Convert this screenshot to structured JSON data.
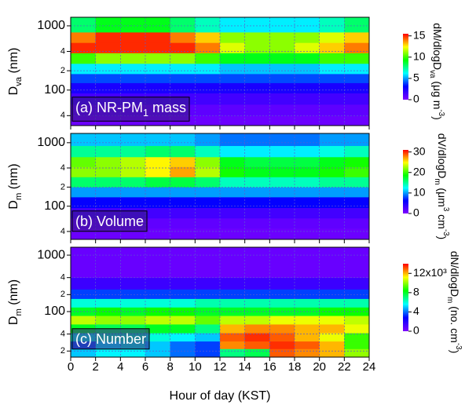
{
  "chart_data": [
    {
      "type": "heatmap",
      "annotation": [
        {
          "text": "(a) NR-PM"
        },
        {
          "text": "1",
          "sub": true
        },
        {
          "text": " mass"
        }
      ],
      "ylabel": [
        {
          "text": "D"
        },
        {
          "text": "va",
          "sub": true
        },
        {
          "text": " (nm)"
        }
      ],
      "colorbar_label": [
        {
          "text": "dM/dlogD"
        },
        {
          "text": "va",
          "sub": true
        },
        {
          "text": " (μg m"
        },
        {
          "text": "-3",
          "sup": true
        },
        {
          "text": ")"
        }
      ],
      "x": [
        0,
        2,
        4,
        6,
        8,
        10,
        12,
        14,
        16,
        18,
        20,
        22,
        24
      ],
      "y_bins": [
        28,
        40,
        60,
        90,
        130,
        180,
        260,
        380,
        550,
        800,
        1360
      ],
      "z": [
        [
          0.5,
          0.5,
          0.5,
          0.5,
          0.5,
          0.5,
          0.5,
          0.5,
          0.5,
          0.5,
          0.5,
          0.5
        ],
        [
          0.8,
          0.8,
          0.8,
          0.8,
          0.8,
          0.8,
          0.8,
          0.8,
          0.8,
          0.8,
          0.8,
          0.8
        ],
        [
          1.5,
          1.5,
          1.5,
          1.5,
          1.5,
          1.5,
          1.5,
          1.5,
          1.5,
          1.5,
          1.5,
          1.5
        ],
        [
          2.5,
          2.5,
          2.5,
          2.5,
          2.5,
          2.5,
          2.5,
          2.5,
          2.5,
          2.5,
          2.5,
          2.5
        ],
        [
          4,
          4,
          4,
          4,
          4,
          4,
          4,
          4,
          4,
          4,
          4,
          4
        ],
        [
          6,
          6,
          6,
          6,
          6,
          6,
          5.5,
          5.5,
          5.5,
          5.5,
          6,
          6
        ],
        [
          10,
          11,
          11,
          11,
          11,
          10,
          9,
          9,
          9,
          9,
          10,
          10
        ],
        [
          15,
          15,
          15,
          15,
          15,
          14,
          12,
          11,
          11,
          12,
          13,
          14
        ],
        [
          14,
          15,
          15,
          15,
          14,
          13,
          11,
          11,
          11,
          11,
          12,
          13
        ],
        [
          8,
          9,
          9,
          9,
          8,
          7,
          6,
          6,
          6,
          6,
          7,
          8
        ]
      ],
      "xlim": [
        0,
        24
      ],
      "xticks": [
        0,
        2,
        4,
        6,
        8,
        10,
        12,
        14,
        16,
        18,
        20,
        22,
        24
      ],
      "ylim": [
        28,
        1360
      ],
      "log_y": true,
      "yticks": [
        {
          "value": 40,
          "label": "4"
        },
        100,
        {
          "value": 200,
          "label": "2"
        },
        {
          "value": 400,
          "label": "4"
        },
        1000
      ],
      "zlim": [
        0,
        15.5
      ],
      "zticks": [
        0,
        5,
        10,
        15
      ],
      "grid": true
    },
    {
      "type": "heatmap",
      "annotation": [
        {
          "text": "(b) Volume"
        }
      ],
      "ylabel": [
        {
          "text": "D"
        },
        {
          "text": "m",
          "sub": true
        },
        {
          "text": " (nm)"
        }
      ],
      "colorbar_label": [
        {
          "text": "dV/dlogD"
        },
        {
          "text": "m",
          "sub": true
        },
        {
          "text": " (μm"
        },
        {
          "text": "3",
          "sup": true
        },
        {
          "text": " cm"
        },
        {
          "text": "-3",
          "sup": true
        },
        {
          "text": ")"
        }
      ],
      "x": [
        0,
        2,
        4,
        6,
        8,
        10,
        12,
        14,
        16,
        18,
        20,
        22,
        24
      ],
      "y_bins": [
        30,
        45,
        65,
        95,
        140,
        200,
        290,
        420,
        600,
        900,
        1400
      ],
      "z": [
        [
          1,
          1,
          1,
          1,
          1,
          1,
          1,
          1,
          1,
          1,
          1,
          1
        ],
        [
          1.5,
          1.5,
          1.5,
          1.5,
          1.5,
          1.5,
          1.5,
          1.5,
          1.5,
          1.5,
          1.5,
          1.5
        ],
        [
          3,
          3,
          3,
          3,
          3,
          3,
          3,
          3,
          3,
          3,
          3,
          3
        ],
        [
          6,
          6,
          6,
          6,
          6,
          6,
          6,
          6,
          6,
          6,
          6,
          6
        ],
        [
          10,
          10,
          10,
          10,
          10,
          10,
          10,
          10,
          10,
          10,
          10,
          10
        ],
        [
          16,
          16,
          16,
          17,
          17,
          16,
          14,
          14,
          14,
          14,
          15,
          15
        ],
        [
          22,
          22,
          23,
          25,
          27,
          23,
          19,
          18,
          18,
          18,
          19,
          20
        ],
        [
          21,
          22,
          23,
          25,
          26,
          22,
          18,
          17,
          17,
          17,
          18,
          19
        ],
        [
          15,
          15,
          15,
          16,
          16,
          14,
          12,
          12,
          12,
          12,
          13,
          14
        ],
        [
          11,
          11,
          11,
          11,
          11,
          10,
          9,
          9,
          9,
          9,
          10,
          10
        ]
      ],
      "xlim": [
        0,
        24
      ],
      "xticks": [
        0,
        2,
        4,
        6,
        8,
        10,
        12,
        14,
        16,
        18,
        20,
        22,
        24
      ],
      "ylim": [
        30,
        1400
      ],
      "log_y": true,
      "yticks": [
        {
          "value": 40,
          "label": "4"
        },
        100,
        {
          "value": 200,
          "label": "2"
        },
        {
          "value": 400,
          "label": "4"
        },
        1000
      ],
      "zlim": [
        0,
        31
      ],
      "zticks": [
        0,
        10,
        20,
        30
      ],
      "grid": true
    },
    {
      "type": "heatmap",
      "annotation": [
        {
          "text": "(c) Number"
        }
      ],
      "ylabel": [
        {
          "text": "D"
        },
        {
          "text": "m",
          "sub": true
        },
        {
          "text": " (nm)"
        }
      ],
      "colorbar_label": [
        {
          "text": "dN/dlogD"
        },
        {
          "text": "m",
          "sub": true
        },
        {
          "text": " (no. cm"
        },
        {
          "text": "-3",
          "sup": true
        },
        {
          "text": ")"
        }
      ],
      "xlabel": "Hour of day (KST)",
      "x": [
        0,
        2,
        4,
        6,
        8,
        10,
        12,
        14,
        16,
        18,
        20,
        22,
        24
      ],
      "y_bins": [
        16,
        22,
        30,
        42,
        60,
        85,
        120,
        170,
        250,
        400,
        1380
      ],
      "z": [
        [
          5000,
          5500,
          5500,
          5000,
          4000,
          3500,
          7000,
          7500,
          13000,
          12500,
          12000,
          10000
        ],
        [
          4000,
          5500,
          6000,
          5000,
          4000,
          3500,
          12500,
          13000,
          13500,
          13000,
          12000,
          9000
        ],
        [
          6000,
          6500,
          6500,
          6000,
          5500,
          5000,
          13000,
          13500,
          13000,
          12000,
          11000,
          9000
        ],
        [
          8000,
          7500,
          7500,
          8000,
          8000,
          7000,
          12000,
          12500,
          12500,
          12000,
          12000,
          11000
        ],
        [
          10500,
          10000,
          10000,
          10500,
          10500,
          9500,
          10500,
          10500,
          11000,
          11000,
          11000,
          10500
        ],
        [
          8000,
          8500,
          8000,
          8500,
          8500,
          8000,
          8000,
          8000,
          8000,
          8000,
          8500,
          8500
        ],
        [
          6000,
          6000,
          6000,
          6000,
          6000,
          6500,
          6500,
          6500,
          6500,
          6500,
          6500,
          6500
        ],
        [
          3500,
          3500,
          3500,
          3500,
          3500,
          3500,
          3500,
          3500,
          3500,
          3500,
          3500,
          3500
        ],
        [
          1500,
          1500,
          1500,
          1500,
          1500,
          1500,
          1500,
          1500,
          1500,
          1500,
          1500,
          1500
        ],
        [
          500,
          500,
          500,
          500,
          500,
          500,
          500,
          500,
          500,
          500,
          500,
          500
        ]
      ],
      "xlim": [
        0,
        24
      ],
      "xticks": [
        0,
        2,
        4,
        6,
        8,
        10,
        12,
        14,
        16,
        18,
        20,
        22,
        24
      ],
      "ylim": [
        15.6,
        1380
      ],
      "log_y": true,
      "yticks": [
        {
          "value": 20,
          "label": "2"
        },
        {
          "value": 40,
          "label": "4"
        },
        100,
        {
          "value": 200,
          "label": "2"
        },
        {
          "value": 400,
          "label": "4"
        },
        1000
      ],
      "zlim": [
        0,
        14000
      ],
      "zticks": [
        0,
        {
          "value": 4000,
          "label": "4"
        },
        {
          "value": 8000,
          "label": "8"
        },
        {
          "value": 12000,
          "label": "12x10³"
        }
      ],
      "grid": true
    }
  ],
  "colormap": [
    "#7f00ff",
    "#0000ff",
    "#00ffff",
    "#00ff00",
    "#ffff00",
    "#ff0000"
  ]
}
